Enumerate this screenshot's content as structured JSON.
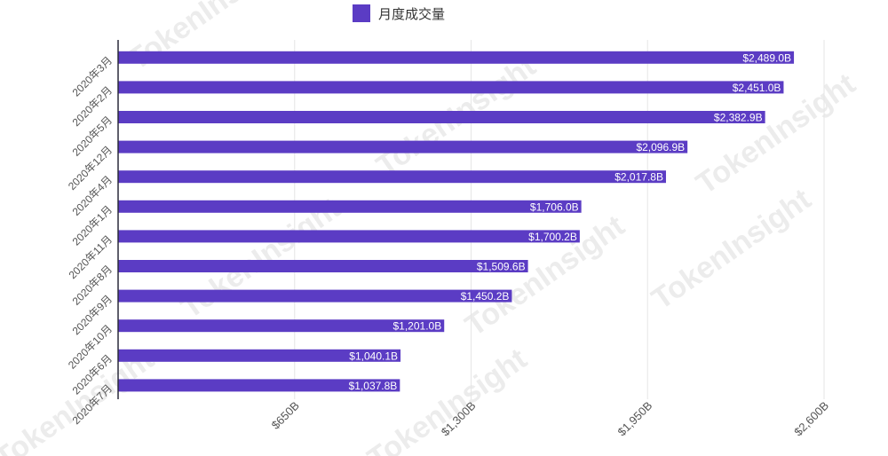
{
  "chart_data": {
    "type": "bar",
    "orientation": "horizontal",
    "categories": [
      "2020年3月",
      "2020年2月",
      "2020年5月",
      "2020年12月",
      "2020年4月",
      "2020年1月",
      "2020年11月",
      "2020年8月",
      "2020年9月",
      "2020年10月",
      "2020年6月",
      "2020年7月"
    ],
    "series": [
      {
        "name": "月度成交量",
        "values": [
          2489.0,
          2451.0,
          2382.9,
          2096.9,
          2017.8,
          1706.0,
          1700.2,
          1509.6,
          1450.2,
          1201.0,
          1040.1,
          1037.8
        ],
        "labels": [
          "$2,489.0B",
          "$2,451.0B",
          "$2,382.9B",
          "$2,096.9B",
          "$2,017.8B",
          "$1,706.0B",
          "$1,700.2B",
          "$1,509.6B",
          "$1,450.2B",
          "$1,201.0B",
          "$1,040.1B",
          "$1,037.8B"
        ]
      }
    ],
    "xlim": [
      0,
      2600
    ],
    "x_ticks": [
      650,
      1300,
      1950,
      2600
    ],
    "x_tick_labels": [
      "$650B",
      "$1,300B",
      "$1,950B",
      "$2,600B"
    ],
    "title": "",
    "xlabel": "",
    "ylabel": "",
    "grid": true,
    "legend_position": "top-center",
    "bar_color": "#5b3cc4",
    "watermark": "TokenInsight"
  }
}
